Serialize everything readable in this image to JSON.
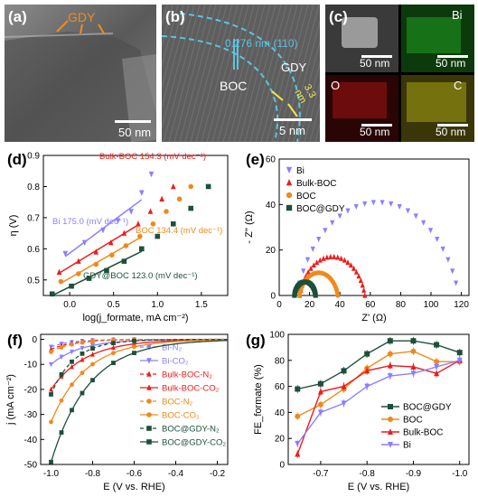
{
  "panels": {
    "a": {
      "label": "(a)",
      "annotation": "GDY",
      "scale": "50 nm"
    },
    "b": {
      "label": "(b)",
      "lattice": "0.276 nm (110)",
      "boc": "BOC",
      "gdy": "GDY",
      "thickness": "3.3 nm",
      "scale": "5 nm"
    },
    "c": {
      "label": "(c)",
      "tiles": [
        {
          "name": "haadf",
          "element": "",
          "scale": "50 nm",
          "color": "#6b6b6b"
        },
        {
          "name": "bi",
          "element": "Bi",
          "scale": "50 nm",
          "color": "#1c8a1c"
        },
        {
          "name": "o",
          "element": "O",
          "scale": "50 nm",
          "color": "#8a1010"
        },
        {
          "name": "c",
          "element": "C",
          "scale": "50 nm",
          "color": "#8f8a10"
        }
      ]
    }
  },
  "chart_data": [
    {
      "id": "d",
      "label": "(d)",
      "type": "scatter",
      "xlabel": "log(j_formate, mA cm⁻²)",
      "ylabel": "η (V)",
      "xlim": [
        -0.3,
        1.8
      ],
      "ylim": [
        0.45,
        0.9
      ],
      "xticks": [
        0.0,
        0.5,
        1.0,
        1.5
      ],
      "yticks": [
        0.5,
        0.6,
        0.7,
        0.8,
        0.9
      ],
      "series": [
        {
          "name": "Bi",
          "color": "#8a7fff",
          "marker": "triangle-down",
          "annotation": "Bi 175.0 (mV dec⁻¹)",
          "x": [
            -0.05,
            0.17,
            0.38,
            0.55,
            0.7,
            0.82,
            0.93
          ],
          "y": [
            0.585,
            0.62,
            0.66,
            0.69,
            0.72,
            0.78,
            0.84
          ]
        },
        {
          "name": "Bulk-BOC",
          "color": "#ee1c1c",
          "marker": "triangle",
          "annotation": "Bulk-BOC 154.3 (mV dec⁻¹)",
          "x": [
            -0.12,
            0.1,
            0.3,
            0.47,
            0.62,
            0.78,
            0.92,
            1.05,
            1.18
          ],
          "y": [
            0.525,
            0.56,
            0.59,
            0.62,
            0.65,
            0.68,
            0.72,
            0.76,
            0.8
          ]
        },
        {
          "name": "BOC",
          "color": "#ee8a1c",
          "marker": "circle",
          "annotation": "BOC 134.4 (mV dec⁻¹)",
          "x": [
            -0.1,
            0.1,
            0.3,
            0.48,
            0.64,
            0.8,
            0.95,
            1.1,
            1.25,
            1.38
          ],
          "y": [
            0.495,
            0.52,
            0.55,
            0.58,
            0.61,
            0.64,
            0.68,
            0.72,
            0.76,
            0.8
          ]
        },
        {
          "name": "BOC@GDY",
          "color": "#1e4f3a",
          "marker": "square",
          "annotation": "GDY@BOC 123.0 (mV dec⁻¹)",
          "x": [
            -0.2,
            0.02,
            0.22,
            0.42,
            0.62,
            0.82,
            1.0,
            1.18,
            1.38,
            1.58
          ],
          "y": [
            0.455,
            0.48,
            0.505,
            0.53,
            0.56,
            0.6,
            0.64,
            0.68,
            0.73,
            0.8
          ]
        }
      ]
    },
    {
      "id": "e",
      "label": "(e)",
      "type": "scatter",
      "xlabel": "Z' (Ω)",
      "ylabel": "- Z'' (Ω)",
      "xlim": [
        0,
        125
      ],
      "ylim": [
        0,
        60
      ],
      "xticks": [
        0,
        20,
        40,
        60,
        80,
        100,
        120
      ],
      "yticks": [
        0,
        20,
        40,
        60
      ],
      "legend": "top-left",
      "series": [
        {
          "name": "Bi",
          "color": "#8a7fff",
          "marker": "triangle-down",
          "center": 65,
          "radius": 55,
          "cy": -14
        },
        {
          "name": "Bulk-BOC",
          "color": "#ee1c1c",
          "marker": "triangle",
          "center": 35,
          "radius": 22,
          "cy": -5
        },
        {
          "name": "BOC",
          "color": "#ee8a1c",
          "marker": "circle",
          "center": 26,
          "radius": 13,
          "cy": -3
        },
        {
          "name": "BOC@GDY",
          "color": "#1e4f3a",
          "marker": "square",
          "center": 17,
          "radius": 7,
          "cy": -1
        }
      ]
    },
    {
      "id": "f",
      "label": "(f)",
      "type": "line",
      "xlabel": "E (V vs. RHE)",
      "ylabel": "j (mA cm⁻²)",
      "xlim": [
        -1.05,
        -0.15
      ],
      "ylim": [
        -50,
        2
      ],
      "xticks": [
        -1.0,
        -0.8,
        -0.6,
        -0.4,
        -0.2
      ],
      "yticks": [
        0,
        -10,
        -20,
        -30,
        -40,
        -50
      ],
      "legend": "right",
      "series": [
        {
          "name": "Bi-N₂",
          "color": "#8a7fff",
          "marker": "triangle-down",
          "dashed": true,
          "a": -3,
          "k": 10
        },
        {
          "name": "Bi-CO₂",
          "color": "#8a7fff",
          "marker": "triangle-down",
          "dashed": false,
          "a": -10,
          "k": 7
        },
        {
          "name": "Bulk-BOC-N₂",
          "color": "#ee1c1c",
          "marker": "triangle",
          "dashed": true,
          "a": -4,
          "k": 9
        },
        {
          "name": "Bulk-BOC-CO₂",
          "color": "#ee1c1c",
          "marker": "triangle",
          "dashed": false,
          "a": -20,
          "k": 6
        },
        {
          "name": "BOC-N₂",
          "color": "#ee8a1c",
          "marker": "circle",
          "dashed": true,
          "a": -5,
          "k": 9
        },
        {
          "name": "BOC-CO₂",
          "color": "#ee8a1c",
          "marker": "circle",
          "dashed": false,
          "a": -33,
          "k": 6
        },
        {
          "name": "BOC@GDY-N₂",
          "color": "#1e4f3a",
          "marker": "square",
          "dashed": true,
          "a": -22,
          "k": 9
        },
        {
          "name": "BOC@GDY-CO₂",
          "color": "#1e4f3a",
          "marker": "square",
          "dashed": false,
          "a": -49,
          "k": 5.5
        }
      ]
    },
    {
      "id": "g",
      "label": "(g)",
      "type": "line",
      "xlabel": "E (V vs. RHE)",
      "ylabel": "FE_formate (%)",
      "xlim": [
        -0.63,
        -1.02
      ],
      "ylim": [
        0,
        100
      ],
      "xticks": [
        -0.7,
        -0.8,
        -0.9,
        -1.0
      ],
      "yticks": [
        0,
        20,
        40,
        60,
        80,
        100
      ],
      "legend": "lower-right",
      "x": [
        -0.65,
        -0.7,
        -0.75,
        -0.8,
        -0.85,
        -0.9,
        -0.95,
        -1.0
      ],
      "series": [
        {
          "name": "BOC@GDY",
          "color": "#1e4f3a",
          "marker": "square",
          "values": [
            58,
            62,
            72,
            85,
            95,
            95,
            92,
            86
          ]
        },
        {
          "name": "BOC",
          "color": "#ee8a1c",
          "marker": "circle",
          "values": [
            37,
            46,
            58,
            74,
            85,
            87,
            79,
            79
          ]
        },
        {
          "name": "Bulk-BOC",
          "color": "#ee1c1c",
          "marker": "triangle",
          "values": [
            8,
            56,
            60,
            72,
            76,
            75,
            70,
            80
          ]
        },
        {
          "name": "Bi",
          "color": "#8a7fff",
          "marker": "triangle-down",
          "values": [
            16,
            40,
            47,
            60,
            68,
            70,
            75,
            80
          ]
        }
      ]
    }
  ]
}
